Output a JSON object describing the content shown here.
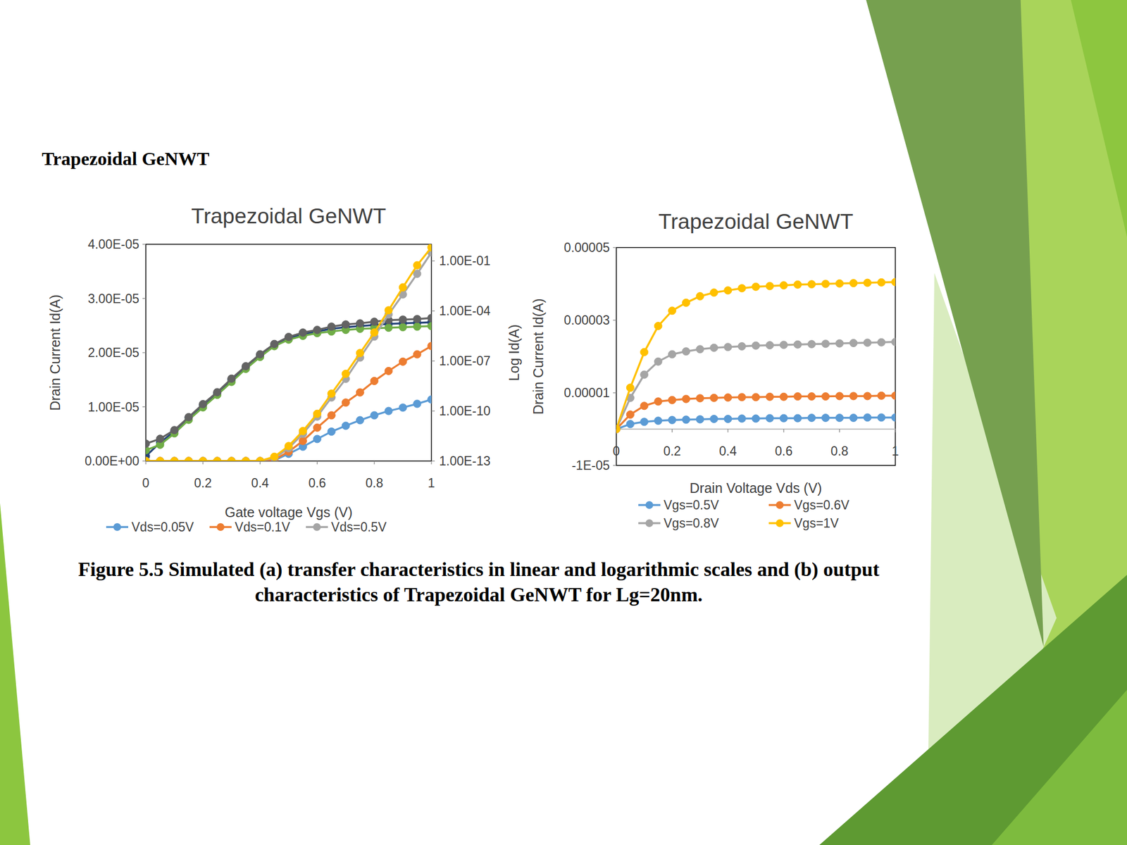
{
  "heading": "Trapezoidal GeNWT",
  "caption": "Figure 5.5 Simulated (a) transfer characteristics in linear and logarithmic scales and (b) output characteristics of Trapezoidal GeNWT for Lg=20nm.",
  "chart_data": [
    {
      "type": "line",
      "title": "Trapezoidal GeNWT",
      "x_label": "Gate voltage Vgs (V)",
      "y_label": "Drain Current Id(A)",
      "y2_label": "Log Id(A)",
      "x": [
        0,
        0.05,
        0.1,
        0.15,
        0.2,
        0.25,
        0.3,
        0.35,
        0.4,
        0.45,
        0.5,
        0.55,
        0.6,
        0.65,
        0.7,
        0.75,
        0.8,
        0.85,
        0.9,
        0.95,
        1
      ],
      "xlim": [
        0,
        1
      ],
      "xticks": [
        0,
        0.2,
        0.4,
        0.6,
        0.8,
        1
      ],
      "ylim": [
        0,
        4e-05
      ],
      "yticks": [
        {
          "value": 0,
          "label": "0.00E+00"
        },
        {
          "value": 1e-05,
          "label": "1.00E-05"
        },
        {
          "value": 2e-05,
          "label": "2.00E-05"
        },
        {
          "value": 3e-05,
          "label": "3.00E-05"
        },
        {
          "value": 4e-05,
          "label": "4.00E-05"
        }
      ],
      "y2lim": [
        1e-13,
        1
      ],
      "y2ticks": [
        {
          "value": 1e-13,
          "label": "1.00E-13"
        },
        {
          "value": 1e-10,
          "label": "1.00E-10"
        },
        {
          "value": 1e-07,
          "label": "1.00E-07"
        },
        {
          "value": 0.0001,
          "label": "1.00E-04"
        },
        {
          "value": 0.1,
          "label": "1.00E-01"
        }
      ],
      "log": "y2",
      "grid": false,
      "legend": "bottom",
      "marker": "circle",
      "line_style": "solid",
      "series": [
        {
          "color": "#264478",
          "values": [
            9e-07,
            3.4e-06,
            5.5e-06,
            8e-06,
            1.03e-05,
            1.25e-05,
            1.5e-05,
            1.73e-05,
            1.95e-05,
            2.14e-05,
            2.27e-05,
            2.34e-05,
            2.39e-05,
            2.44e-05,
            2.47e-05,
            2.49e-05,
            2.51e-05,
            2.53e-05,
            2.54e-05,
            2.55e-05,
            2.56e-05
          ]
        },
        {
          "color": "#70ad47",
          "values": [
            2e-06,
            3e-06,
            5.1e-06,
            7.6e-06,
            9.9e-06,
            1.22e-05,
            1.46e-05,
            1.7e-05,
            1.92e-05,
            2.12e-05,
            2.24e-05,
            2.31e-05,
            2.36e-05,
            2.39e-05,
            2.42e-05,
            2.44e-05,
            2.45e-05,
            2.46e-05,
            2.47e-05,
            2.48e-05,
            2.49e-05
          ]
        },
        {
          "color": "#636363",
          "values": [
            3.2e-06,
            4.1e-06,
            5.7e-06,
            8.1e-06,
            1.05e-05,
            1.27e-05,
            1.52e-05,
            1.75e-05,
            1.97e-05,
            2.16e-05,
            2.29e-05,
            2.37e-05,
            2.42e-05,
            2.48e-05,
            2.52e-05,
            2.54e-05,
            2.57e-05,
            2.6e-05,
            2.61e-05,
            2.62e-05,
            2.64e-05
          ]
        },
        {
          "name": "Vds=0.05V",
          "color": "#5b9bd5",
          "axis": "y2",
          "values": [
            1e-13,
            1e-13,
            1e-13,
            1e-13,
            1e-13,
            1e-13,
            1e-13,
            1e-13,
            1e-13,
            1.1e-13,
            2.7e-13,
            7.2e-13,
            2.1e-12,
            5.8e-12,
            1.3e-11,
            2.8e-11,
            5.5e-11,
            1e-10,
            1.6e-10,
            2.7e-10,
            4.9e-10
          ]
        },
        {
          "name": "Vds=0.1V",
          "color": "#ed7d31",
          "axis": "y2",
          "values": [
            1e-13,
            1e-13,
            1e-13,
            1e-13,
            1e-13,
            1e-13,
            1e-13,
            1e-13,
            1e-13,
            1.2e-13,
            3.6e-13,
            1.6e-12,
            1e-11,
            5.5e-11,
            3.2e-10,
            1.3e-09,
            6.3e-09,
            2.5e-08,
            9.1e-08,
            2.5e-07,
            7.9e-07
          ]
        },
        {
          "name": "Vds=0.5V",
          "color": "#a5a5a5",
          "axis": "y2",
          "values": [
            1e-13,
            1e-13,
            1e-13,
            1e-13,
            1e-13,
            1e-13,
            1e-13,
            1e-13,
            1e-13,
            1.5e-13,
            5.9e-13,
            4.3e-12,
            4.6e-11,
            6.5e-10,
            8.5e-09,
            1.6e-07,
            2.9e-06,
            6.2e-05,
            0.00098,
            0.017,
            0.32
          ]
        },
        {
          "color": "#ffc000",
          "axis": "y2",
          "values": [
            1e-13,
            1e-13,
            1e-13,
            1e-13,
            1e-13,
            1e-13,
            1e-13,
            1e-13,
            1e-13,
            1.8e-13,
            7.9e-13,
            6.3e-12,
            6.8e-11,
            1.1e-09,
            1.7e-08,
            3e-07,
            5.1e-06,
            0.00011,
            0.0026,
            0.055,
            0.65
          ]
        }
      ]
    },
    {
      "type": "line",
      "title": "Trapezoidal GeNWT",
      "x_label": "Drain Voltage Vds (V)",
      "y_label": "Drain Current Id(A)",
      "x": [
        0,
        0.05,
        0.1,
        0.15,
        0.2,
        0.25,
        0.3,
        0.35,
        0.4,
        0.45,
        0.5,
        0.55,
        0.6,
        0.65,
        0.7,
        0.75,
        0.8,
        0.85,
        0.9,
        0.95,
        1
      ],
      "xlim": [
        0,
        1
      ],
      "xticks": [
        0,
        0.2,
        0.4,
        0.6,
        0.8,
        1
      ],
      "ylim": [
        -1e-05,
        5e-05
      ],
      "yticks": [
        {
          "value": -1e-05,
          "label": "-1E-05"
        },
        {
          "value": 1e-05,
          "label": "0.00001"
        },
        {
          "value": 3e-05,
          "label": "0.00003"
        },
        {
          "value": 5e-05,
          "label": "0.00005"
        }
      ],
      "grid": false,
      "legend": "bottom",
      "marker": "circle",
      "line_style": "solid",
      "series": [
        {
          "name": "Vgs=0.5V",
          "color": "#5b9bd5",
          "values": [
            0,
            1.4e-06,
            2e-06,
            2.3e-06,
            2.5e-06,
            2.6e-06,
            2.7e-06,
            2.8e-06,
            2.8e-06,
            2.9e-06,
            2.9e-06,
            3e-06,
            3e-06,
            3e-06,
            3.1e-06,
            3.1e-06,
            3.1e-06,
            3.1e-06,
            3.2e-06,
            3.2e-06,
            3.2e-06
          ]
        },
        {
          "name": "Vgs=0.6V",
          "color": "#ed7d31",
          "values": [
            0,
            4e-06,
            6.4e-06,
            7.6e-06,
            8e-06,
            8.3e-06,
            8.5e-06,
            8.6e-06,
            8.7e-06,
            8.8e-06,
            8.8e-06,
            8.9e-06,
            8.9e-06,
            9e-06,
            9e-06,
            9e-06,
            9.1e-06,
            9.1e-06,
            9.1e-06,
            9.2e-06,
            9.2e-06
          ]
        },
        {
          "name": "Vgs=0.8V",
          "color": "#a5a5a5",
          "values": [
            0,
            8.6e-06,
            1.5e-05,
            1.86e-05,
            2.06e-05,
            2.14e-05,
            2.2e-05,
            2.24e-05,
            2.26e-05,
            2.28e-05,
            2.3e-05,
            2.31e-05,
            2.32e-05,
            2.33e-05,
            2.34e-05,
            2.35e-05,
            2.36e-05,
            2.37e-05,
            2.38e-05,
            2.39e-05,
            2.4e-05
          ]
        },
        {
          "name": "Vgs=1V",
          "color": "#ffc000",
          "values": [
            0,
            1.14e-05,
            2.12e-05,
            2.84e-05,
            3.26e-05,
            3.48e-05,
            3.66e-05,
            3.76e-05,
            3.82e-05,
            3.88e-05,
            3.92e-05,
            3.94e-05,
            3.96e-05,
            3.98e-05,
            3.99e-05,
            4e-05,
            4.01e-05,
            4.02e-05,
            4.03e-05,
            4.04e-05,
            4.05e-05
          ]
        }
      ]
    }
  ]
}
